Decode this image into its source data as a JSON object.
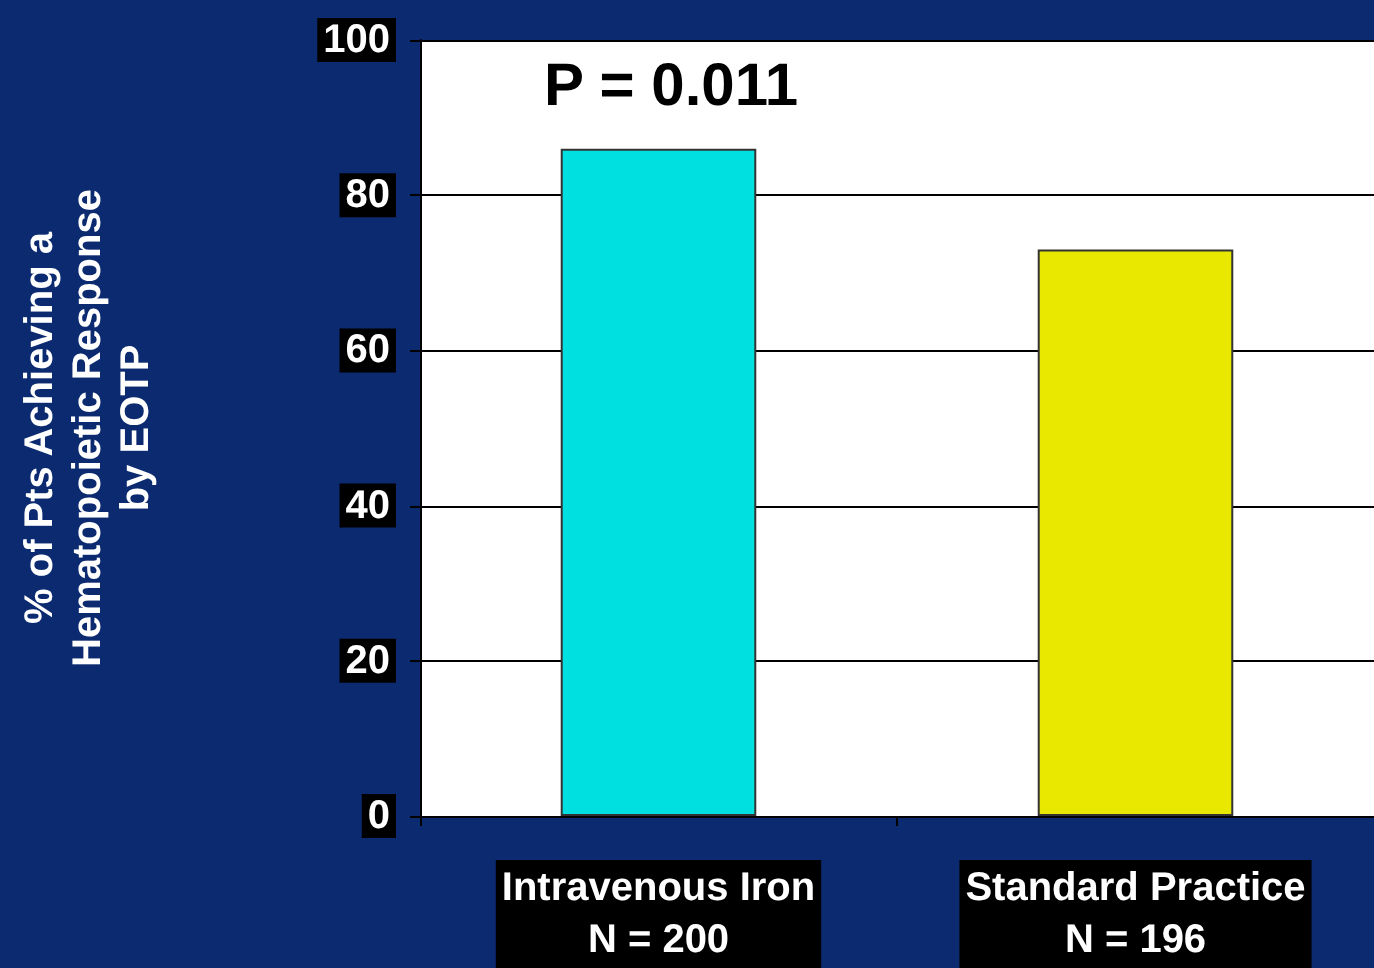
{
  "chart_data": {
    "type": "bar",
    "ylabel": "% of Pts Achieving a\nHematopoietic Response\nby EOTP",
    "categories": [
      "Intravenous Iron\nN = 200",
      "Standard Practice\nN = 196"
    ],
    "values": [
      86,
      73
    ],
    "colors": [
      "#00e0e0",
      "#e8e800"
    ],
    "ylim": [
      0,
      100
    ],
    "yticks": [
      0,
      20,
      40,
      60,
      80,
      100
    ],
    "grid": "y",
    "annotations": [
      "P = 0.011"
    ]
  }
}
